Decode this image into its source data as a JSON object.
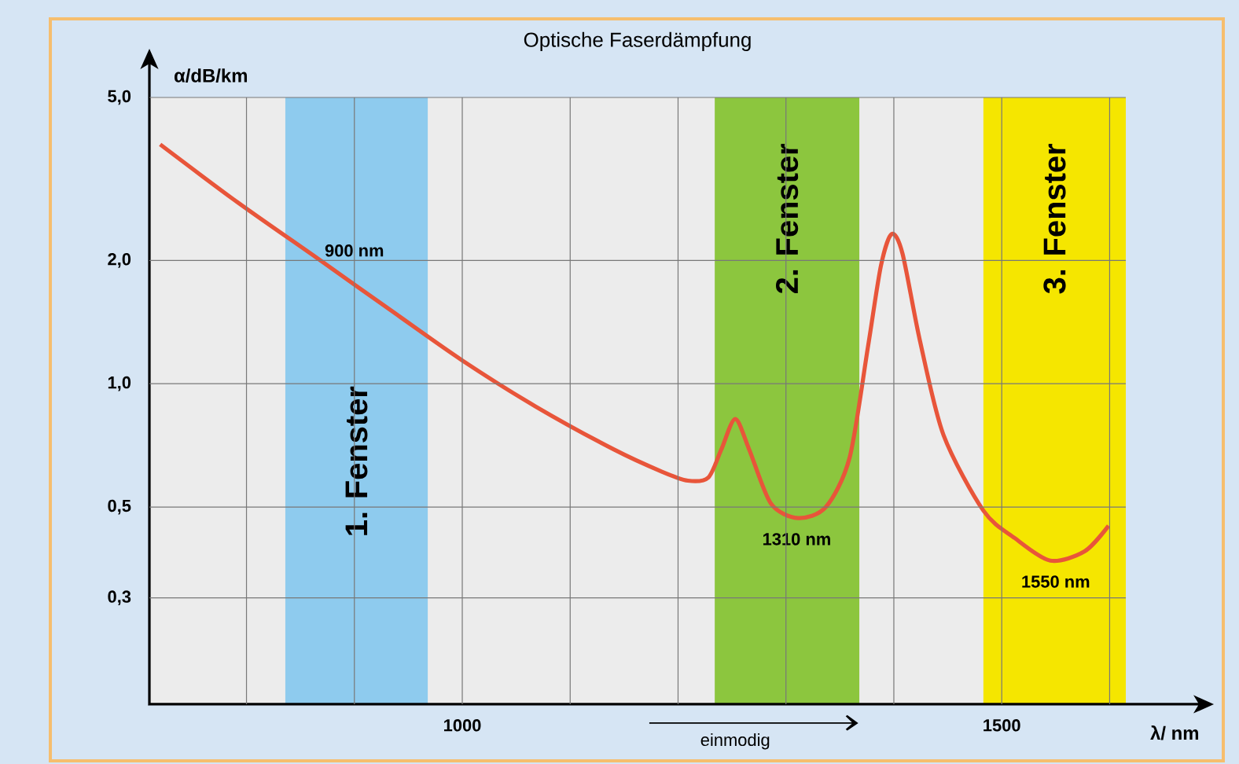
{
  "chart_data": {
    "type": "line",
    "title": "Optische Faserdämpfung",
    "xlabel": "λ/ nm",
    "ylabel": "α/dB/km",
    "log": "y",
    "xlim": [
      710,
      1615
    ],
    "ylim": [
      0.165,
      5.0
    ],
    "xticks": [
      {
        "value": 800,
        "label": null
      },
      {
        "value": 900,
        "label": null
      },
      1000,
      {
        "value": 1100,
        "label": null
      },
      {
        "value": 1200,
        "label": null
      },
      {
        "value": 1300,
        "label": null
      },
      {
        "value": 1400,
        "label": null
      },
      1500,
      {
        "value": 1600,
        "label": null
      }
    ],
    "yticks": [
      {
        "value": 0.3,
        "label": "0,3"
      },
      {
        "value": 0.5,
        "label": "0,5"
      },
      {
        "value": 1.0,
        "label": "1,0"
      },
      {
        "value": 2.0,
        "label": "2,0"
      },
      {
        "value": 5.0,
        "label": "5,0"
      }
    ],
    "grid": true,
    "series": [
      {
        "color": "#e8553a",
        "x": [
          720,
          792,
          865,
          937,
          1000,
          1068,
          1141,
          1185,
          1209,
          1228,
          1240,
          1253,
          1266,
          1286,
          1311,
          1337,
          1359,
          1376,
          1388,
          1398,
          1408,
          1424,
          1446,
          1483,
          1512,
          1545,
          1577,
          1599
        ],
        "values": [
          3.84,
          2.77,
          2.03,
          1.49,
          1.14,
          0.88,
          0.69,
          0.61,
          0.58,
          0.59,
          0.69,
          0.82,
          0.69,
          0.51,
          0.47,
          0.5,
          0.66,
          1.23,
          1.94,
          2.32,
          2.08,
          1.28,
          0.75,
          0.49,
          0.42,
          0.37,
          0.39,
          0.45
        ]
      }
    ],
    "bands": [
      {
        "axis": "x",
        "from": 836,
        "to": 968,
        "label": "1. Fenster",
        "color": "#8ecbee"
      },
      {
        "axis": "x",
        "from": 1234,
        "to": 1368,
        "label": "2. Fenster",
        "color": "#8cc63e"
      },
      {
        "axis": "x",
        "from": 1483,
        "to": 1615,
        "label": "3. Fenster",
        "color": "#f5e600"
      }
    ],
    "annotations": [
      {
        "text": "900 nm",
        "x": 900,
        "y": 1.75
      },
      {
        "text": "1310 nm",
        "x": 1310,
        "y": 0.47
      },
      {
        "text": "1550 nm",
        "x": 1550,
        "y": 0.37
      },
      "einmodig"
    ]
  }
}
